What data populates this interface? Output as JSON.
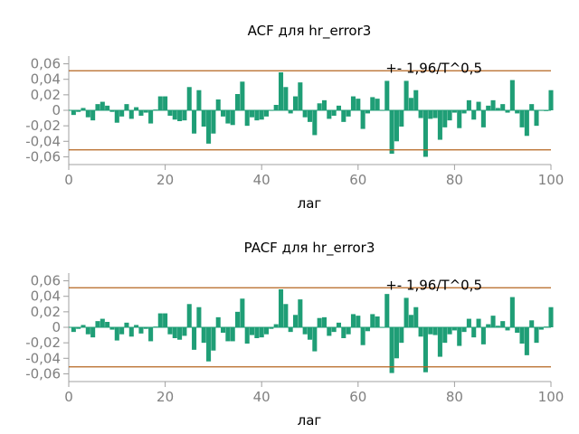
{
  "colors": {
    "bar": "#1f9e76",
    "band": "#b5641f",
    "axis": "#a0a0a0",
    "tick": "#808080"
  },
  "chart_data": [
    {
      "type": "bar",
      "title": "ACF для hr_error3",
      "xlabel": "лаг",
      "ylabel": "",
      "xlim": [
        0,
        100
      ],
      "ylim": [
        -0.07,
        0.07
      ],
      "xticks": [
        0,
        20,
        40,
        60,
        80,
        100
      ],
      "xtick_labels": [
        "0",
        "20",
        "40",
        "60",
        "80",
        "100"
      ],
      "yticks": [
        0.06,
        0.04,
        0.02,
        0,
        -0.02,
        -0.04,
        -0.06
      ],
      "ytick_labels": [
        "0,06",
        "0,04",
        "0,02",
        "0",
        "-0,02",
        "-0,04",
        "-0,06"
      ],
      "band": 0.051,
      "band_label": "+- 1,96/T^0,5",
      "x": [
        1,
        2,
        3,
        4,
        5,
        6,
        7,
        8,
        9,
        10,
        11,
        12,
        13,
        14,
        15,
        16,
        17,
        18,
        19,
        20,
        21,
        22,
        23,
        24,
        25,
        26,
        27,
        28,
        29,
        30,
        31,
        32,
        33,
        34,
        35,
        36,
        37,
        38,
        39,
        40,
        41,
        42,
        43,
        44,
        45,
        46,
        47,
        48,
        49,
        50,
        51,
        52,
        53,
        54,
        55,
        56,
        57,
        58,
        59,
        60,
        61,
        62,
        63,
        64,
        65,
        66,
        67,
        68,
        69,
        70,
        71,
        72,
        73,
        74,
        75,
        76,
        77,
        78,
        79,
        80,
        81,
        82,
        83,
        84,
        85,
        86,
        87,
        88,
        89,
        90,
        91,
        92,
        93,
        94,
        95,
        96,
        97,
        98,
        99,
        100
      ],
      "values": [
        -0.006,
        -0.002,
        0.003,
        -0.009,
        -0.013,
        0.008,
        0.011,
        0.006,
        -0.002,
        -0.016,
        -0.008,
        0.008,
        -0.011,
        0.004,
        -0.007,
        -0.003,
        -0.017,
        0.001,
        0.018,
        0.018,
        -0.007,
        -0.012,
        -0.014,
        -0.013,
        0.03,
        -0.03,
        0.026,
        -0.021,
        -0.043,
        -0.03,
        0.014,
        -0.008,
        -0.017,
        -0.019,
        0.021,
        0.037,
        -0.02,
        -0.009,
        -0.013,
        -0.012,
        -0.008,
        0.0,
        0.007,
        0.049,
        0.03,
        -0.004,
        0.018,
        0.036,
        -0.009,
        -0.015,
        -0.032,
        0.009,
        0.013,
        -0.011,
        -0.007,
        0.006,
        -0.015,
        -0.008,
        0.018,
        0.015,
        -0.024,
        -0.004,
        0.017,
        0.015,
        0.0,
        0.038,
        -0.056,
        -0.04,
        -0.021,
        0.038,
        0.016,
        0.026,
        -0.01,
        -0.06,
        -0.011,
        -0.01,
        -0.038,
        -0.022,
        -0.013,
        -0.003,
        -0.023,
        -0.004,
        0.013,
        -0.012,
        0.011,
        -0.022,
        0.006,
        0.013,
        0.003,
        0.008,
        -0.003,
        0.039,
        -0.004,
        -0.022,
        -0.033,
        0.008,
        -0.02,
        0.0,
        -0.001,
        0.026
      ]
    },
    {
      "type": "bar",
      "title": "PACF для hr_error3",
      "xlabel": "лаг",
      "ylabel": "",
      "xlim": [
        0,
        100
      ],
      "ylim": [
        -0.07,
        0.07
      ],
      "xticks": [
        0,
        20,
        40,
        60,
        80,
        100
      ],
      "xtick_labels": [
        "0",
        "20",
        "40",
        "60",
        "80",
        "100"
      ],
      "yticks": [
        0.06,
        0.04,
        0.02,
        0,
        -0.02,
        -0.04,
        -0.06
      ],
      "ytick_labels": [
        "0,06",
        "0,04",
        "0,02",
        "0",
        "-0,02",
        "-0,04",
        "-0,06"
      ],
      "band": 0.051,
      "band_label": "+- 1,96/T^0,5",
      "x": [
        1,
        2,
        3,
        4,
        5,
        6,
        7,
        8,
        9,
        10,
        11,
        12,
        13,
        14,
        15,
        16,
        17,
        18,
        19,
        20,
        21,
        22,
        23,
        24,
        25,
        26,
        27,
        28,
        29,
        30,
        31,
        32,
        33,
        34,
        35,
        36,
        37,
        38,
        39,
        40,
        41,
        42,
        43,
        44,
        45,
        46,
        47,
        48,
        49,
        50,
        51,
        52,
        53,
        54,
        55,
        56,
        57,
        58,
        59,
        60,
        61,
        62,
        63,
        64,
        65,
        66,
        67,
        68,
        69,
        70,
        71,
        72,
        73,
        74,
        75,
        76,
        77,
        78,
        79,
        80,
        81,
        82,
        83,
        84,
        85,
        86,
        87,
        88,
        89,
        90,
        91,
        92,
        93,
        94,
        95,
        96,
        97,
        98,
        99,
        100
      ],
      "values": [
        -0.006,
        -0.002,
        0.003,
        -0.009,
        -0.013,
        0.008,
        0.011,
        0.007,
        -0.003,
        -0.017,
        -0.009,
        0.006,
        -0.012,
        0.003,
        -0.008,
        -0.002,
        -0.018,
        0.001,
        0.018,
        0.018,
        -0.009,
        -0.014,
        -0.016,
        -0.011,
        0.03,
        -0.029,
        0.026,
        -0.02,
        -0.044,
        -0.03,
        0.013,
        -0.007,
        -0.018,
        -0.018,
        0.02,
        0.037,
        -0.021,
        -0.01,
        -0.014,
        -0.013,
        -0.009,
        -0.002,
        0.004,
        0.049,
        0.03,
        -0.006,
        0.016,
        0.036,
        -0.009,
        -0.016,
        -0.031,
        0.012,
        0.013,
        -0.011,
        -0.006,
        0.006,
        -0.014,
        -0.009,
        0.017,
        0.015,
        -0.023,
        -0.005,
        0.017,
        0.014,
        0.0,
        0.043,
        -0.059,
        -0.04,
        -0.02,
        0.038,
        0.016,
        0.026,
        -0.012,
        -0.058,
        -0.009,
        -0.01,
        -0.038,
        -0.02,
        -0.009,
        -0.004,
        -0.024,
        -0.006,
        0.011,
        -0.013,
        0.011,
        -0.022,
        0.004,
        0.015,
        0.002,
        0.008,
        -0.004,
        0.039,
        -0.007,
        -0.021,
        -0.036,
        0.009,
        -0.02,
        -0.003,
        0.001,
        0.026
      ]
    }
  ]
}
